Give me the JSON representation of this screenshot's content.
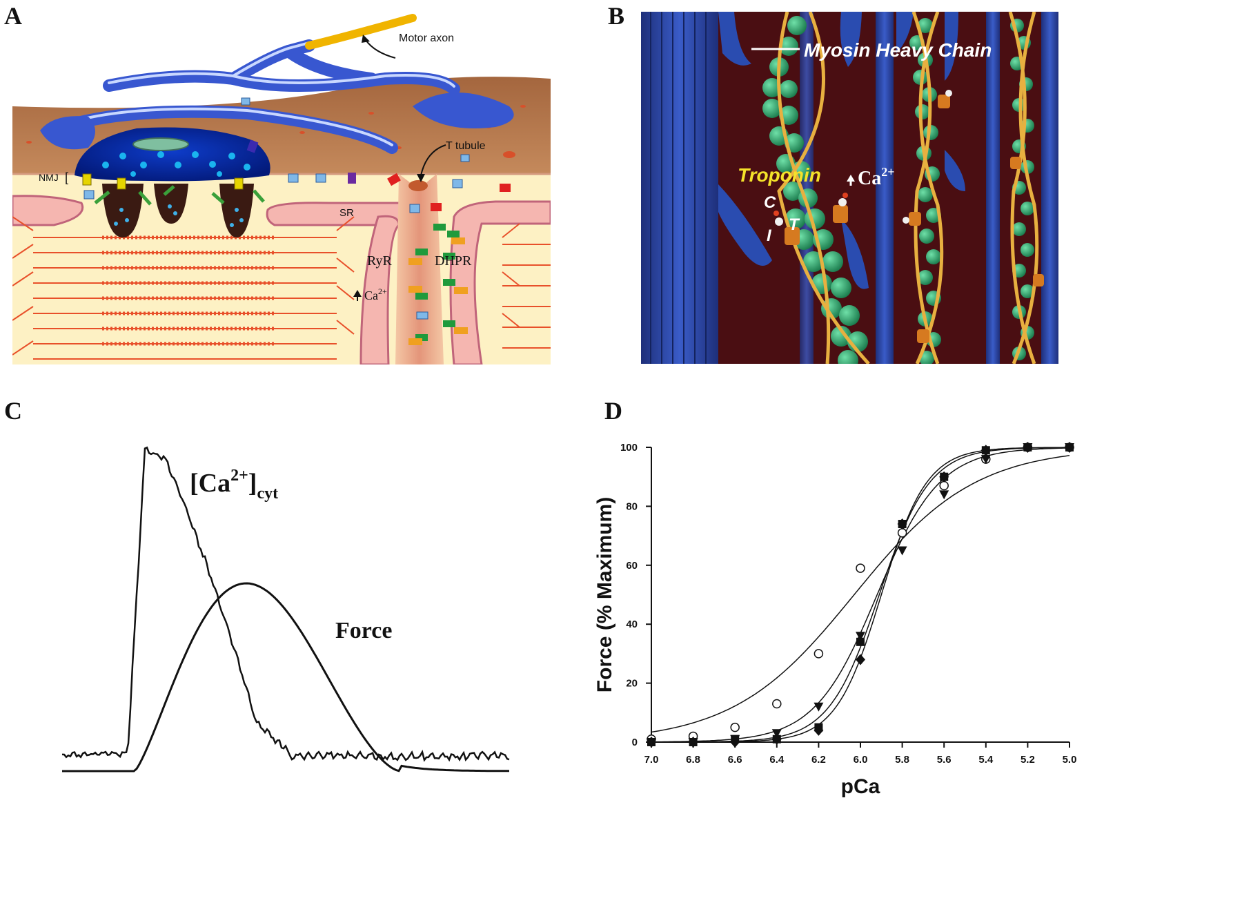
{
  "panels": {
    "a": {
      "letter": "A",
      "labels": {
        "motor_axon": "Motor axon",
        "t_tubule": "T tubule",
        "nmj": "NMJ",
        "sr": "SR",
        "ryr": "RyR",
        "dhpr": "DHPR",
        "ca": "Ca",
        "ca_sup": "2+"
      }
    },
    "b": {
      "letter": "B",
      "labels": {
        "myosin": "Myosin Heavy Chain",
        "troponin": "Troponin",
        "ca": "Ca",
        "ca_sup": "2+",
        "c": "C",
        "i": "I",
        "t": "T"
      }
    },
    "c": {
      "letter": "C",
      "labels": {
        "ca_open": "[Ca",
        "ca_sup": "2+",
        "ca_close": "]",
        "ca_sub": "cyt",
        "force": "Force"
      }
    },
    "d": {
      "letter": "D",
      "chart_data": {
        "type": "scatter",
        "xlabel": "pCa",
        "ylabel": "Force (% Maximum)",
        "xlim": [
          7.0,
          5.0
        ],
        "ylim": [
          0,
          100
        ],
        "x_ticks": [
          "7.0",
          "6.8",
          "6.6",
          "6.4",
          "6.2",
          "6.0",
          "5.8",
          "5.6",
          "5.4",
          "5.2",
          "5.0"
        ],
        "y_ticks": [
          "0",
          "20",
          "40",
          "60",
          "80",
          "100"
        ],
        "series": [
          {
            "marker": "open-circle",
            "x": [
              7.0,
              6.8,
              6.6,
              6.4,
              6.2,
              6.0,
              5.8,
              5.6,
              5.4,
              5.2,
              5.0
            ],
            "y": [
              1,
              2,
              5,
              13,
              30,
              59,
              71,
              87,
              96,
              100,
              100
            ]
          },
          {
            "marker": "filled-square",
            "x": [
              7.0,
              6.8,
              6.6,
              6.4,
              6.2,
              6.0,
              5.8,
              5.6,
              5.4,
              5.2,
              5.0
            ],
            "y": [
              0,
              0,
              1,
              1,
              5,
              34,
              74,
              90,
              99,
              100,
              100
            ]
          },
          {
            "marker": "filled-down-triangle",
            "x": [
              7.0,
              6.8,
              6.6,
              6.4,
              6.2,
              6.0,
              5.8,
              5.6,
              5.4,
              5.2,
              5.0
            ],
            "y": [
              0,
              0,
              1,
              3,
              12,
              36,
              65,
              84,
              96,
              100,
              100
            ]
          },
          {
            "marker": "filled-diamond",
            "x": [
              7.0,
              6.8,
              6.6,
              6.4,
              6.2,
              6.0,
              5.8,
              5.6,
              5.4,
              5.2,
              5.0
            ],
            "y": [
              0,
              0,
              0,
              1,
              4,
              28,
              74,
              90,
              99,
              100,
              100
            ]
          }
        ]
      }
    }
  }
}
